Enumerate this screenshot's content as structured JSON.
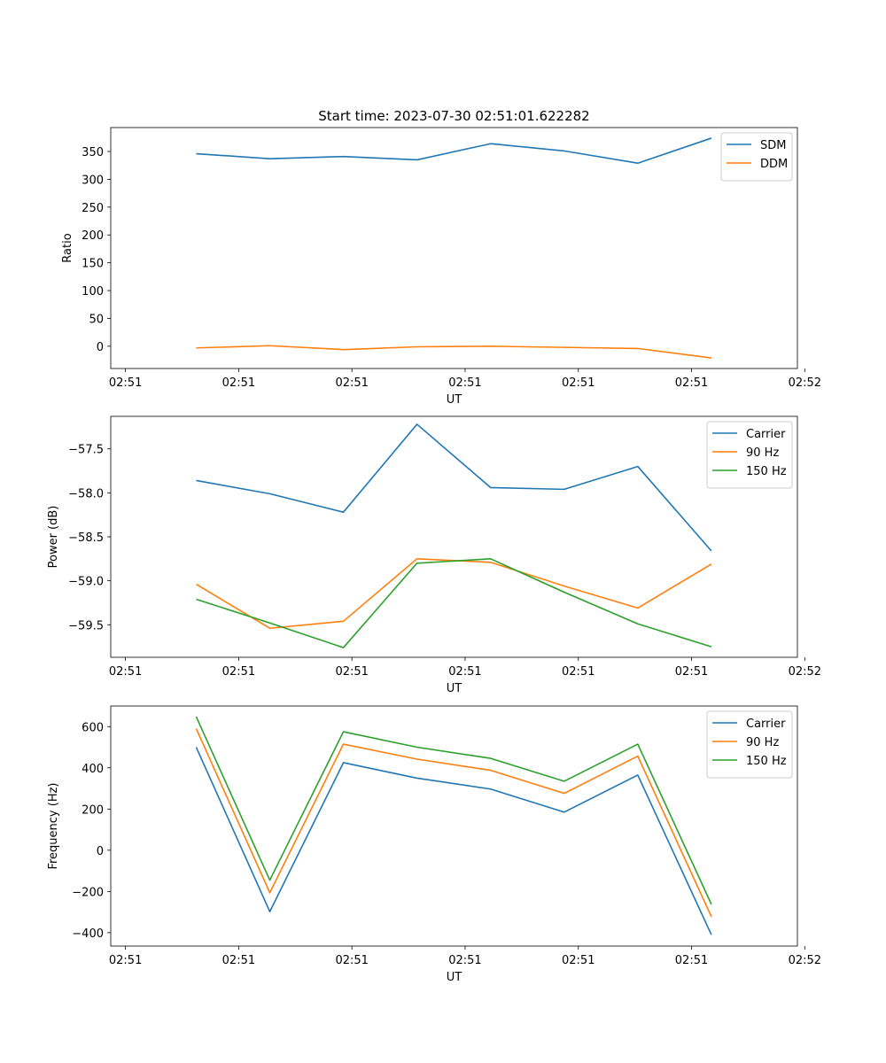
{
  "title": "Start time: 2023-07-30 02:51:01.622282",
  "colors": {
    "c0": "#1f77b4",
    "c1": "#ff7f0e",
    "c2": "#2ca02c"
  },
  "chart_data": [
    {
      "type": "line",
      "title": "Start time: 2023-07-30 02:51:01.622282",
      "xlabel": "UT",
      "ylabel": "Ratio",
      "xlim": [
        -0.755,
        5.31
      ],
      "ylim": [
        -40,
        393
      ],
      "xticks": [
        -0.625,
        0.375,
        1.375,
        2.375,
        3.375,
        4.375,
        5.375
      ],
      "xtick_labels": [
        "02:51",
        "02:51",
        "02:51",
        "02:51",
        "02:51",
        "02:51",
        "02:52"
      ],
      "yticks": [
        0,
        50,
        100,
        150,
        200,
        250,
        300,
        350
      ],
      "ytick_labels": [
        "0",
        "50",
        "100",
        "150",
        "200",
        "250",
        "300",
        "350"
      ],
      "legend": "top-right",
      "x": [
        0,
        0.65,
        1.3,
        1.95,
        2.6,
        3.25,
        3.9,
        4.55
      ],
      "series": [
        {
          "name": "SDM",
          "color": "#1f77b4",
          "values": [
            346,
            337,
            341,
            335,
            364,
            351,
            329,
            374
          ]
        },
        {
          "name": "DDM",
          "color": "#ff7f0e",
          "values": [
            -3,
            1,
            -6,
            -1,
            0,
            -2,
            -4,
            -21
          ]
        }
      ]
    },
    {
      "type": "line",
      "xlabel": "UT",
      "ylabel": "Power (dB)",
      "xlim": [
        -0.755,
        5.31
      ],
      "ylim": [
        -59.87,
        -57.13
      ],
      "xticks": [
        -0.625,
        0.375,
        1.375,
        2.375,
        3.375,
        4.375,
        5.375
      ],
      "xtick_labels": [
        "02:51",
        "02:51",
        "02:51",
        "02:51",
        "02:51",
        "02:51",
        "02:52"
      ],
      "yticks": [
        -59.5,
        -59.0,
        -58.5,
        -58.0,
        -57.5
      ],
      "ytick_labels": [
        "−59.5",
        "−59.0",
        "−58.5",
        "−58.0",
        "−57.5"
      ],
      "legend": "top-right",
      "x": [
        0,
        0.65,
        1.3,
        1.95,
        2.6,
        3.25,
        3.9,
        4.55
      ],
      "series": [
        {
          "name": "Carrier",
          "color": "#1f77b4",
          "values": [
            -57.86,
            -58.01,
            -58.22,
            -57.22,
            -57.94,
            -57.96,
            -57.7,
            -58.66
          ]
        },
        {
          "name": "90 Hz",
          "color": "#ff7f0e",
          "values": [
            -59.04,
            -59.54,
            -59.46,
            -58.75,
            -58.79,
            -59.06,
            -59.31,
            -58.81
          ]
        },
        {
          "name": "150 Hz",
          "color": "#2ca02c",
          "values": [
            -59.21,
            -59.48,
            -59.76,
            -58.8,
            -58.75,
            -59.13,
            -59.49,
            -59.75
          ]
        }
      ]
    },
    {
      "type": "line",
      "xlabel": "UT",
      "ylabel": "Frequency (Hz)",
      "xlim": [
        -0.755,
        5.31
      ],
      "ylim": [
        -465,
        700
      ],
      "xticks": [
        -0.625,
        0.375,
        1.375,
        2.375,
        3.375,
        4.375,
        5.375
      ],
      "xtick_labels": [
        "02:51",
        "02:51",
        "02:51",
        "02:51",
        "02:51",
        "02:51",
        "02:52"
      ],
      "yticks": [
        -400,
        -200,
        0,
        200,
        400,
        600
      ],
      "ytick_labels": [
        "−400",
        "−200",
        "0",
        "200",
        "400",
        "600"
      ],
      "legend": "top-right",
      "x": [
        0,
        0.65,
        1.3,
        1.95,
        2.6,
        3.25,
        3.9,
        4.55
      ],
      "series": [
        {
          "name": "Carrier",
          "color": "#1f77b4",
          "values": [
            500,
            -298,
            425,
            350,
            297,
            185,
            365,
            -410
          ]
        },
        {
          "name": "90 Hz",
          "color": "#ff7f0e",
          "values": [
            590,
            -206,
            515,
            442,
            388,
            276,
            457,
            -322
          ]
        },
        {
          "name": "150 Hz",
          "color": "#2ca02c",
          "values": [
            648,
            -145,
            575,
            500,
            446,
            335,
            515,
            -262
          ]
        }
      ]
    }
  ]
}
